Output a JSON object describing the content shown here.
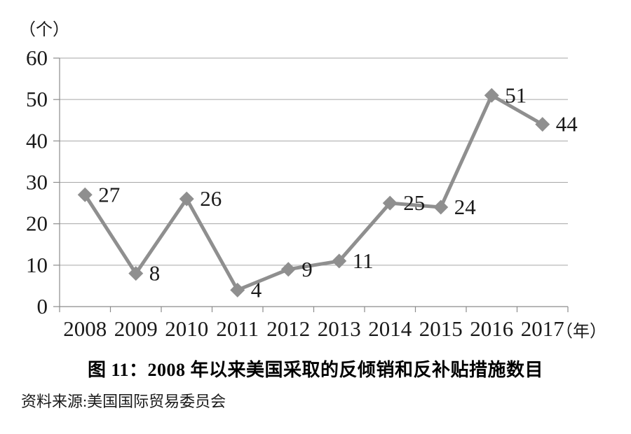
{
  "chart_data": {
    "type": "line",
    "title": "图 11：2008 年以来美国采取的反倾销和反补贴措施数目",
    "source": "资料来源:美国国际贸易委员会",
    "unit_label": "（个）",
    "year_suffix": "（年）",
    "categories": [
      "2008",
      "2009",
      "2010",
      "2011",
      "2012",
      "2013",
      "2014",
      "2015",
      "2016",
      "2017"
    ],
    "values": [
      27,
      8,
      26,
      4,
      9,
      11,
      25,
      24,
      51,
      44
    ],
    "yticks": [
      0,
      10,
      20,
      30,
      40,
      50,
      60
    ],
    "ylim": [
      0,
      60
    ],
    "grid": true,
    "legend_position": "none",
    "colors": {
      "line": "#8f8f8f",
      "marker": "#8f8f8f",
      "grid": "#a6a6a6",
      "axis": "#8c8c8c",
      "text": "#1a1a1a"
    }
  }
}
